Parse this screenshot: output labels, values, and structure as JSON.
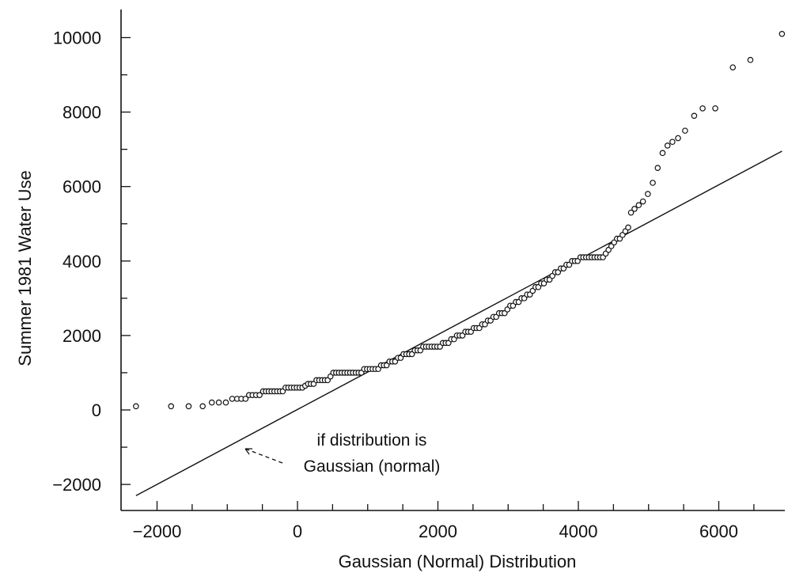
{
  "chart_data": {
    "type": "scatter",
    "title": "",
    "xlabel": "Gaussian (Normal) Distribution",
    "ylabel": "Summer 1981 Water Use",
    "xlim": [
      -2500,
      7000
    ],
    "ylim": [
      -2600,
      10600
    ],
    "x_ticks": [
      -2000,
      0,
      2000,
      4000,
      6000
    ],
    "x_tick_labels": [
      "−2000",
      "0",
      "2000",
      "4000",
      "6000"
    ],
    "y_ticks": [
      -2000,
      0,
      2000,
      4000,
      6000,
      8000,
      10000
    ],
    "y_tick_labels": [
      "−2000",
      "0",
      "2000",
      "4000",
      "6000",
      "8000",
      "10000"
    ],
    "grid": false,
    "marker": "open circle",
    "reference_line": {
      "x": [
        -2300,
        6900
      ],
      "y": [
        -2300,
        6950
      ]
    },
    "annotation": {
      "lines": [
        "if distribution is",
        "Gaussian (normal)"
      ]
    },
    "points": [
      [
        -2300,
        100
      ],
      [
        -1800,
        100
      ],
      [
        -1550,
        100
      ],
      [
        -1350,
        100
      ],
      [
        -1220,
        200
      ],
      [
        -1120,
        200
      ],
      [
        -1020,
        200
      ],
      [
        -930,
        300
      ],
      [
        -860,
        300
      ],
      [
        -800,
        300
      ],
      [
        -740,
        300
      ],
      [
        -690,
        400
      ],
      [
        -640,
        400
      ],
      [
        -590,
        400
      ],
      [
        -540,
        400
      ],
      [
        -490,
        500
      ],
      [
        -450,
        500
      ],
      [
        -410,
        500
      ],
      [
        -370,
        500
      ],
      [
        -330,
        500
      ],
      [
        -290,
        500
      ],
      [
        -250,
        500
      ],
      [
        -210,
        500
      ],
      [
        -170,
        600
      ],
      [
        -130,
        600
      ],
      [
        -90,
        600
      ],
      [
        -50,
        600
      ],
      [
        -10,
        600
      ],
      [
        30,
        600
      ],
      [
        70,
        600
      ],
      [
        110,
        650
      ],
      [
        150,
        700
      ],
      [
        190,
        700
      ],
      [
        230,
        700
      ],
      [
        270,
        800
      ],
      [
        310,
        800
      ],
      [
        350,
        800
      ],
      [
        390,
        800
      ],
      [
        430,
        800
      ],
      [
        470,
        900
      ],
      [
        510,
        1000
      ],
      [
        550,
        1000
      ],
      [
        590,
        1000
      ],
      [
        630,
        1000
      ],
      [
        670,
        1000
      ],
      [
        710,
        1000
      ],
      [
        750,
        1000
      ],
      [
        790,
        1000
      ],
      [
        830,
        1000
      ],
      [
        870,
        1000
      ],
      [
        910,
        1000
      ],
      [
        950,
        1100
      ],
      [
        990,
        1100
      ],
      [
        1030,
        1100
      ],
      [
        1070,
        1100
      ],
      [
        1110,
        1100
      ],
      [
        1150,
        1100
      ],
      [
        1190,
        1200
      ],
      [
        1230,
        1200
      ],
      [
        1270,
        1200
      ],
      [
        1310,
        1300
      ],
      [
        1350,
        1300
      ],
      [
        1390,
        1300
      ],
      [
        1430,
        1400
      ],
      [
        1470,
        1400
      ],
      [
        1510,
        1500
      ],
      [
        1550,
        1500
      ],
      [
        1590,
        1500
      ],
      [
        1630,
        1500
      ],
      [
        1670,
        1600
      ],
      [
        1710,
        1600
      ],
      [
        1750,
        1600
      ],
      [
        1790,
        1700
      ],
      [
        1830,
        1700
      ],
      [
        1870,
        1700
      ],
      [
        1910,
        1700
      ],
      [
        1950,
        1700
      ],
      [
        1990,
        1700
      ],
      [
        2030,
        1700
      ],
      [
        2070,
        1800
      ],
      [
        2110,
        1800
      ],
      [
        2150,
        1800
      ],
      [
        2190,
        1900
      ],
      [
        2230,
        1900
      ],
      [
        2270,
        2000
      ],
      [
        2310,
        2000
      ],
      [
        2350,
        2000
      ],
      [
        2390,
        2100
      ],
      [
        2430,
        2100
      ],
      [
        2470,
        2100
      ],
      [
        2510,
        2200
      ],
      [
        2550,
        2200
      ],
      [
        2590,
        2200
      ],
      [
        2630,
        2300
      ],
      [
        2670,
        2300
      ],
      [
        2710,
        2400
      ],
      [
        2750,
        2400
      ],
      [
        2790,
        2500
      ],
      [
        2830,
        2500
      ],
      [
        2870,
        2600
      ],
      [
        2910,
        2600
      ],
      [
        2950,
        2600
      ],
      [
        2990,
        2700
      ],
      [
        3030,
        2800
      ],
      [
        3070,
        2800
      ],
      [
        3110,
        2900
      ],
      [
        3150,
        2900
      ],
      [
        3190,
        3000
      ],
      [
        3230,
        3000
      ],
      [
        3270,
        3100
      ],
      [
        3310,
        3100
      ],
      [
        3350,
        3200
      ],
      [
        3390,
        3300
      ],
      [
        3430,
        3300
      ],
      [
        3470,
        3400
      ],
      [
        3510,
        3400
      ],
      [
        3550,
        3500
      ],
      [
        3590,
        3500
      ],
      [
        3630,
        3600
      ],
      [
        3670,
        3700
      ],
      [
        3710,
        3700
      ],
      [
        3750,
        3800
      ],
      [
        3790,
        3800
      ],
      [
        3830,
        3900
      ],
      [
        3870,
        3900
      ],
      [
        3910,
        4000
      ],
      [
        3950,
        4000
      ],
      [
        3990,
        4000
      ],
      [
        4030,
        4100
      ],
      [
        4070,
        4100
      ],
      [
        4110,
        4100
      ],
      [
        4150,
        4100
      ],
      [
        4190,
        4100
      ],
      [
        4230,
        4100
      ],
      [
        4270,
        4100
      ],
      [
        4310,
        4100
      ],
      [
        4350,
        4100
      ],
      [
        4390,
        4200
      ],
      [
        4430,
        4300
      ],
      [
        4470,
        4400
      ],
      [
        4510,
        4500
      ],
      [
        4550,
        4600
      ],
      [
        4590,
        4600
      ],
      [
        4630,
        4700
      ],
      [
        4670,
        4800
      ],
      [
        4710,
        4900
      ],
      [
        4750,
        5300
      ],
      [
        4800,
        5400
      ],
      [
        4860,
        5500
      ],
      [
        4920,
        5600
      ],
      [
        4990,
        5800
      ],
      [
        5060,
        6100
      ],
      [
        5130,
        6500
      ],
      [
        5200,
        6900
      ],
      [
        5270,
        7100
      ],
      [
        5340,
        7200
      ],
      [
        5420,
        7300
      ],
      [
        5520,
        7500
      ],
      [
        5650,
        7900
      ],
      [
        5770,
        8100
      ],
      [
        5950,
        8100
      ],
      [
        6200,
        9200
      ],
      [
        6450,
        9400
      ],
      [
        6900,
        10100
      ]
    ]
  }
}
